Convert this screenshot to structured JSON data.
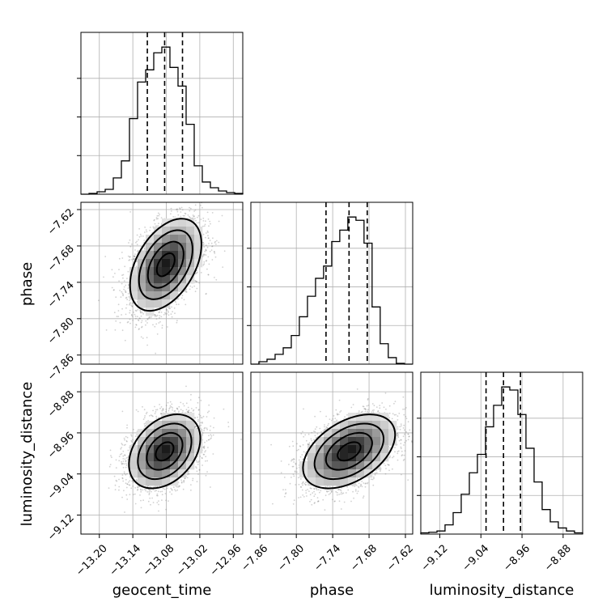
{
  "chart_data": {
    "type": "corner",
    "parameters": [
      "geocent_time",
      "phase",
      "luminosity_distance"
    ],
    "ranges": {
      "geocent_time": [
        -13.233,
        -12.943
      ],
      "phase": [
        -7.875,
        -7.608
      ],
      "luminosity_distance": [
        -9.157,
        -8.842
      ]
    },
    "ticks": {
      "geocent_time": [
        {
          "v": -13.2,
          "label": "−13.20"
        },
        {
          "v": -13.14,
          "label": "−13.14"
        },
        {
          "v": -13.08,
          "label": "−13.08"
        },
        {
          "v": -13.02,
          "label": "−13.02"
        },
        {
          "v": -12.96,
          "label": "−12.96"
        }
      ],
      "phase": [
        {
          "v": -7.86,
          "label": "−7.86"
        },
        {
          "v": -7.8,
          "label": "−7.80"
        },
        {
          "v": -7.74,
          "label": "−7.74"
        },
        {
          "v": -7.68,
          "label": "−7.68"
        },
        {
          "v": -7.62,
          "label": "−7.62"
        }
      ],
      "luminosity_distance": [
        {
          "v": -9.12,
          "label": "−9.12"
        },
        {
          "v": -9.04,
          "label": "−9.04"
        },
        {
          "v": -8.96,
          "label": "−8.96"
        },
        {
          "v": -8.88,
          "label": "−8.88"
        }
      ]
    },
    "grid": true,
    "histograms": {
      "geocent_time": {
        "quantiles": [
          -13.114,
          -13.083,
          -13.051
        ],
        "bin_edges": [
          -13.233,
          -13.2185,
          -13.204,
          -13.1895,
          -13.175,
          -13.1605,
          -13.146,
          -13.1315,
          -13.117,
          -13.1025,
          -13.088,
          -13.0735,
          -13.059,
          -13.0445,
          -13.03,
          -13.0155,
          -13.001,
          -12.9865,
          -12.972,
          -12.9575,
          -12.943
        ],
        "counts": [
          0,
          1,
          3,
          6,
          20,
          41,
          93,
          138,
          153,
          174,
          181,
          156,
          133,
          86,
          35,
          15,
          8,
          4,
          2,
          1
        ]
      },
      "phase": {
        "quantiles": [
          -7.751,
          -7.713,
          -7.683
        ],
        "bin_edges": [
          -7.875,
          -7.8617,
          -7.8483,
          -7.835,
          -7.8216,
          -7.8083,
          -7.795,
          -7.7816,
          -7.7683,
          -7.755,
          -7.7416,
          -7.7283,
          -7.715,
          -7.7016,
          -7.6883,
          -7.675,
          -7.6616,
          -7.6483,
          -7.635,
          -7.6216,
          -7.6083
        ],
        "counts": [
          0,
          3,
          6,
          12,
          20,
          35,
          58,
          83,
          105,
          120,
          150,
          164,
          180,
          176,
          148,
          70,
          25,
          8,
          1,
          0
        ]
      },
      "luminosity_distance": {
        "quantiles": [
          -9.03,
          -8.996,
          -8.963
        ],
        "bin_edges": [
          -9.157,
          -9.1413,
          -9.1255,
          -9.1098,
          -9.094,
          -9.0783,
          -9.0625,
          -9.0468,
          -9.031,
          -9.0153,
          -8.9995,
          -8.9838,
          -8.968,
          -8.9523,
          -8.9365,
          -8.9208,
          -8.905,
          -8.8893,
          -8.8735,
          -8.8578,
          -8.842
        ],
        "counts": [
          2,
          3,
          5,
          15,
          35,
          65,
          100,
          130,
          175,
          210,
          240,
          235,
          195,
          140,
          85,
          40,
          20,
          10,
          5,
          2
        ]
      }
    },
    "pairs": [
      {
        "x": "geocent_time",
        "y": "phase",
        "x_mean": -13.081,
        "y_mean": -7.711,
        "x_sd": 0.032,
        "y_sd": 0.038,
        "corr": 0.45
      },
      {
        "x": "geocent_time",
        "y": "luminosity_distance",
        "x_mean": -13.083,
        "y_mean": -8.996,
        "x_sd": 0.032,
        "y_sd": 0.036,
        "corr": 0.35
      },
      {
        "x": "phase",
        "y": "luminosity_distance",
        "x_mean": -7.713,
        "y_mean": -8.996,
        "x_sd": 0.038,
        "y_sd": 0.036,
        "corr": 0.45
      }
    ]
  }
}
